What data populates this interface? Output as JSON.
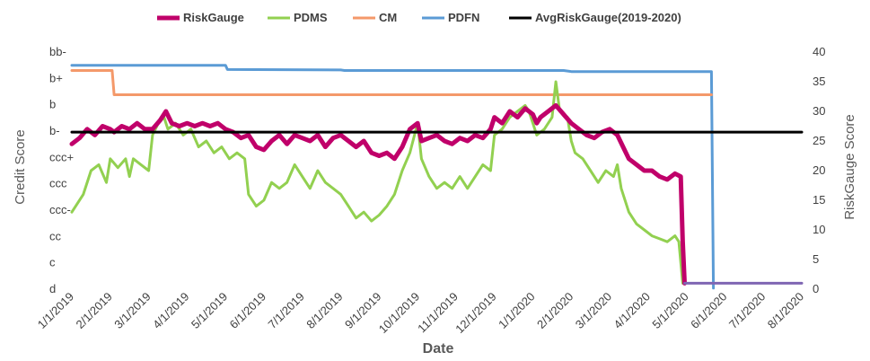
{
  "chart_data": {
    "type": "line",
    "title": "",
    "xlabel": "Date",
    "ylabel_left": "Credit Score",
    "ylabel_right": "RiskGauge Score",
    "x_ticks": [
      "1/1/2019",
      "2/1/2019",
      "3/1/2019",
      "4/1/2019",
      "5/1/2019",
      "6/1/2019",
      "7/1/2019",
      "8/1/2019",
      "9/1/2019",
      "10/1/2019",
      "11/1/2019",
      "12/1/2019",
      "1/1/2020",
      "2/1/2020",
      "3/1/2020",
      "4/1/2020",
      "5/1/2020",
      "6/1/2020",
      "7/1/2020",
      "8/1/2020"
    ],
    "x_range_months": [
      0,
      19
    ],
    "y_left_categories": [
      "d",
      "c",
      "cc",
      "ccc-",
      "ccc",
      "ccc+",
      "b-",
      "b",
      "b+",
      "bb-"
    ],
    "y_right_ticks": [
      0,
      5,
      10,
      15,
      20,
      25,
      30,
      35,
      40
    ],
    "y_right_range": [
      0,
      40
    ],
    "legend_position": "top",
    "colors": {
      "RiskGauge": "#c0006a",
      "PDMS": "#92d050",
      "CM": "#f4996a",
      "PDFN": "#5b9bd5",
      "AvgRiskGauge": "#000000",
      "tail": "#7f66b3"
    },
    "series": [
      {
        "name": "RiskGauge",
        "axis": "right",
        "points": [
          [
            0,
            24.5
          ],
          [
            0.2,
            25.5
          ],
          [
            0.4,
            27
          ],
          [
            0.6,
            26
          ],
          [
            0.8,
            27.5
          ],
          [
            1.0,
            27
          ],
          [
            1.1,
            26.5
          ],
          [
            1.3,
            27.5
          ],
          [
            1.5,
            27
          ],
          [
            1.7,
            28
          ],
          [
            1.9,
            27
          ],
          [
            2.1,
            27
          ],
          [
            2.3,
            28.5
          ],
          [
            2.45,
            30
          ],
          [
            2.6,
            28
          ],
          [
            2.8,
            27.5
          ],
          [
            3.0,
            28
          ],
          [
            3.2,
            27.5
          ],
          [
            3.4,
            28
          ],
          [
            3.6,
            27.5
          ],
          [
            3.8,
            28
          ],
          [
            4.0,
            27
          ],
          [
            4.2,
            26.5
          ],
          [
            4.4,
            25.5
          ],
          [
            4.6,
            26
          ],
          [
            4.8,
            24
          ],
          [
            5.0,
            23.5
          ],
          [
            5.2,
            25
          ],
          [
            5.4,
            26
          ],
          [
            5.6,
            24.5
          ],
          [
            5.8,
            26
          ],
          [
            6.0,
            25.5
          ],
          [
            6.2,
            25
          ],
          [
            6.4,
            26
          ],
          [
            6.6,
            24
          ],
          [
            6.8,
            25.5
          ],
          [
            7.0,
            26
          ],
          [
            7.2,
            25
          ],
          [
            7.4,
            24
          ],
          [
            7.6,
            25
          ],
          [
            7.8,
            23
          ],
          [
            8.0,
            22.5
          ],
          [
            8.2,
            23
          ],
          [
            8.4,
            22
          ],
          [
            8.6,
            24
          ],
          [
            8.8,
            27
          ],
          [
            9.0,
            28
          ],
          [
            9.1,
            25
          ],
          [
            9.3,
            25.5
          ],
          [
            9.5,
            26
          ],
          [
            9.7,
            25
          ],
          [
            9.9,
            24.5
          ],
          [
            10.1,
            25.5
          ],
          [
            10.3,
            25
          ],
          [
            10.5,
            26
          ],
          [
            10.7,
            25.5
          ],
          [
            10.9,
            27
          ],
          [
            11.0,
            29
          ],
          [
            11.2,
            28
          ],
          [
            11.4,
            30
          ],
          [
            11.6,
            29
          ],
          [
            11.8,
            30.5
          ],
          [
            12.0,
            29.5
          ],
          [
            12.1,
            28
          ],
          [
            12.2,
            29
          ],
          [
            12.4,
            30
          ],
          [
            12.6,
            31
          ],
          [
            12.8,
            29.5
          ],
          [
            13.0,
            28
          ],
          [
            13.2,
            27
          ],
          [
            13.4,
            26
          ],
          [
            13.6,
            25.5
          ],
          [
            13.8,
            26.5
          ],
          [
            14.0,
            27
          ],
          [
            14.2,
            26
          ],
          [
            14.35,
            24
          ],
          [
            14.5,
            22
          ],
          [
            14.7,
            21
          ],
          [
            14.9,
            20
          ],
          [
            15.1,
            20
          ],
          [
            15.3,
            19
          ],
          [
            15.5,
            18.5
          ],
          [
            15.7,
            19.5
          ],
          [
            15.85,
            19
          ],
          [
            15.9,
            8
          ],
          [
            15.95,
            1
          ]
        ]
      },
      {
        "name": "PDMS",
        "axis": "right",
        "points": [
          [
            0,
            13
          ],
          [
            0.1,
            14
          ],
          [
            0.3,
            16
          ],
          [
            0.5,
            20
          ],
          [
            0.7,
            21
          ],
          [
            0.9,
            18
          ],
          [
            1.0,
            22
          ],
          [
            1.2,
            20.5
          ],
          [
            1.4,
            22
          ],
          [
            1.5,
            19
          ],
          [
            1.6,
            22
          ],
          [
            1.8,
            21
          ],
          [
            2.0,
            20
          ],
          [
            2.1,
            26
          ],
          [
            2.25,
            28
          ],
          [
            2.4,
            29
          ],
          [
            2.5,
            27
          ],
          [
            2.7,
            28
          ],
          [
            2.9,
            26
          ],
          [
            3.1,
            27
          ],
          [
            3.3,
            24
          ],
          [
            3.5,
            25
          ],
          [
            3.7,
            23
          ],
          [
            3.9,
            24
          ],
          [
            4.1,
            22
          ],
          [
            4.3,
            23
          ],
          [
            4.5,
            22
          ],
          [
            4.6,
            16
          ],
          [
            4.8,
            14
          ],
          [
            5.0,
            15
          ],
          [
            5.2,
            18
          ],
          [
            5.4,
            17
          ],
          [
            5.6,
            18
          ],
          [
            5.8,
            21
          ],
          [
            6.0,
            19
          ],
          [
            6.2,
            17
          ],
          [
            6.4,
            20
          ],
          [
            6.6,
            18
          ],
          [
            6.8,
            17
          ],
          [
            7.0,
            16
          ],
          [
            7.2,
            14
          ],
          [
            7.4,
            12
          ],
          [
            7.6,
            13
          ],
          [
            7.8,
            11.5
          ],
          [
            8.0,
            12.5
          ],
          [
            8.2,
            14
          ],
          [
            8.4,
            16
          ],
          [
            8.6,
            20
          ],
          [
            8.8,
            23
          ],
          [
            9.0,
            28
          ],
          [
            9.1,
            22
          ],
          [
            9.3,
            19
          ],
          [
            9.5,
            17
          ],
          [
            9.7,
            18
          ],
          [
            9.9,
            17
          ],
          [
            10.1,
            19
          ],
          [
            10.3,
            17
          ],
          [
            10.5,
            19
          ],
          [
            10.7,
            21
          ],
          [
            10.9,
            20
          ],
          [
            11.0,
            26
          ],
          [
            11.2,
            27
          ],
          [
            11.4,
            29
          ],
          [
            11.6,
            30
          ],
          [
            11.8,
            31
          ],
          [
            11.9,
            30
          ],
          [
            12.0,
            28
          ],
          [
            12.1,
            26
          ],
          [
            12.3,
            27
          ],
          [
            12.5,
            29
          ],
          [
            12.6,
            35
          ],
          [
            12.7,
            30
          ],
          [
            12.9,
            29
          ],
          [
            13.0,
            25
          ],
          [
            13.1,
            23
          ],
          [
            13.3,
            22
          ],
          [
            13.5,
            20
          ],
          [
            13.7,
            18
          ],
          [
            13.9,
            20
          ],
          [
            14.1,
            19
          ],
          [
            14.2,
            21
          ],
          [
            14.3,
            17
          ],
          [
            14.5,
            13
          ],
          [
            14.7,
            11
          ],
          [
            14.9,
            10
          ],
          [
            15.1,
            9
          ],
          [
            15.3,
            8.5
          ],
          [
            15.5,
            8
          ],
          [
            15.7,
            9
          ],
          [
            15.8,
            8
          ],
          [
            15.9,
            1
          ],
          [
            15.95,
            1
          ]
        ]
      },
      {
        "name": "CM",
        "axis": "left",
        "points": [
          [
            0,
            8.3
          ],
          [
            1.05,
            8.3
          ],
          [
            1.1,
            7.38
          ],
          [
            16.65,
            7.38
          ]
        ]
      },
      {
        "name": "PDFN",
        "axis": "left",
        "points": [
          [
            0,
            8.5
          ],
          [
            4.0,
            8.5
          ],
          [
            4.05,
            8.34
          ],
          [
            7.0,
            8.32
          ],
          [
            7.1,
            8.3
          ],
          [
            12.8,
            8.3
          ],
          [
            13.0,
            8.26
          ],
          [
            16.65,
            8.26
          ],
          [
            16.7,
            0.04
          ]
        ]
      },
      {
        "name": "AvgRiskGauge(2019-2020)",
        "axis": "right",
        "points": [
          [
            0,
            26.5
          ],
          [
            19,
            26.5
          ]
        ]
      },
      {
        "name": "tail",
        "axis": "right",
        "points": [
          [
            15.95,
            1
          ],
          [
            19,
            1
          ]
        ]
      }
    ],
    "legend": [
      "RiskGauge",
      "PDMS",
      "CM",
      "PDFN",
      "AvgRiskGauge(2019-2020)"
    ]
  }
}
